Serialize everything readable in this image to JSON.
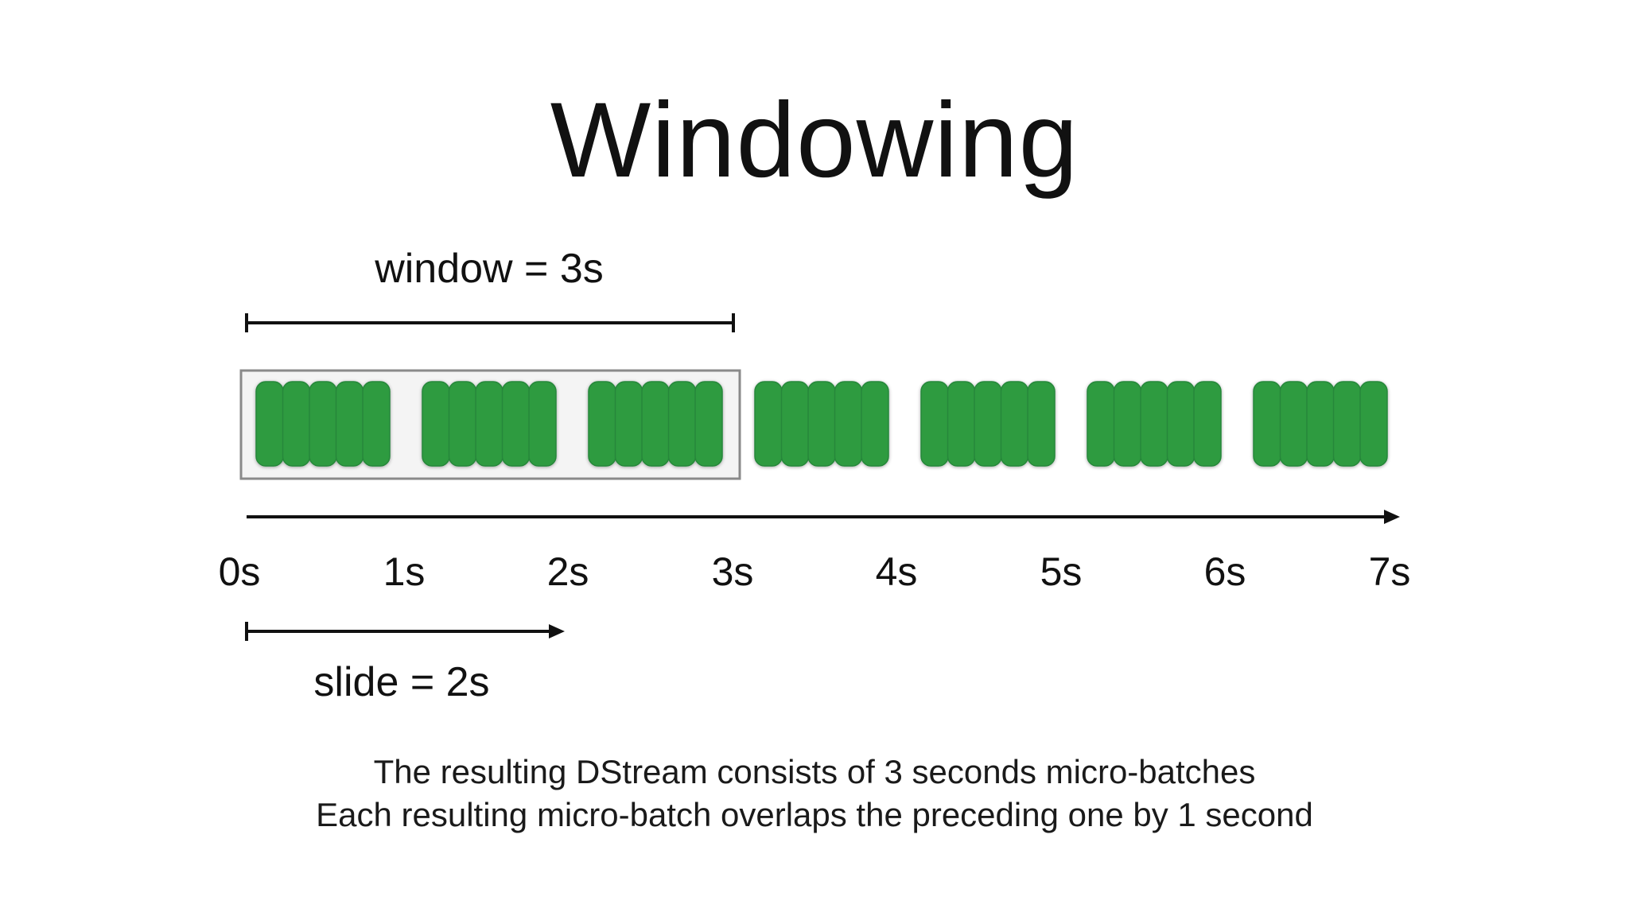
{
  "title": "Windowing",
  "window_label": "window = 3s",
  "slide_label": "slide = 2s",
  "timeline": {
    "ticks": [
      "0s",
      "1s",
      "2s",
      "3s",
      "4s",
      "5s",
      "6s",
      "7s"
    ]
  },
  "batches": {
    "count": 7,
    "records_per_batch": 5,
    "color": "#2f9b3f",
    "highlighted_window_batches": 3
  },
  "caption": {
    "line1": "The resulting DStream consists of 3 seconds micro-batches",
    "line2": "Each resulting micro-batch overlaps the preceding one by 1 second"
  }
}
